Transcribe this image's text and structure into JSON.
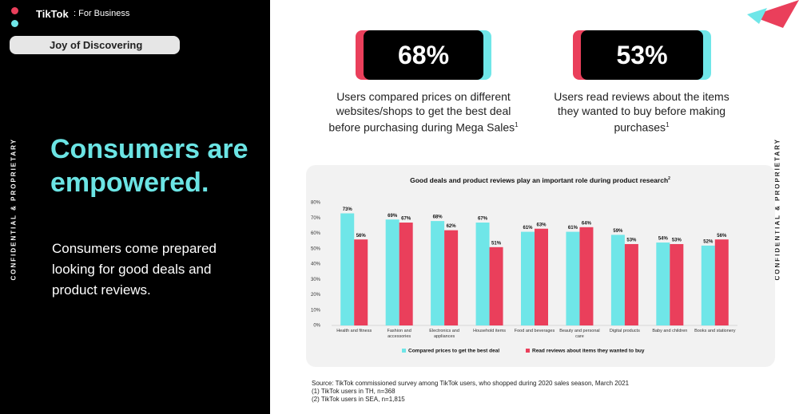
{
  "slide": {
    "brand": "TikTok",
    "brand_suffix": "For Business",
    "section": "Joy of Discovering",
    "confidential": "CONFIDENTIAL & PROPRIETARY",
    "headline": "Consumers are empowered.",
    "body": "Consumers come prepared looking for good deals and product reviews.",
    "stats": [
      {
        "value": "68%",
        "caption": "Users compared prices on different websites/shops to get the best deal before purchasing during Mega Sales",
        "note": "1"
      },
      {
        "value": "53%",
        "caption": "Users read reviews about the items they wanted to buy before making purchases",
        "note": "1"
      }
    ],
    "source": [
      "Source: TikTok commissioned survey among TikTok users, who shopped during 2020 sales season, March 2021",
      "(1) TikTok users in TH, n=368",
      "(2) TikTok users in SEA, n=1,815"
    ]
  },
  "chart_data": {
    "type": "bar",
    "title": "Good deals and product reviews play an important role during product research",
    "title_note": "2",
    "categories": [
      "Health and fitness",
      "Fashion and accessories",
      "Electronics and appliances",
      "Household items",
      "Food and beverages",
      "Beauty and personal care",
      "Digital products",
      "Baby and children",
      "Books and stationery"
    ],
    "series": [
      {
        "name": "Compared prices to get the best deal",
        "color": "#6fe6e8",
        "values": [
          73,
          69,
          68,
          67,
          61,
          61,
          59,
          54,
          52
        ],
        "value_labels": [
          "73%",
          "69%",
          "68%",
          "67%",
          "61%",
          "61%",
          "59%",
          "54%",
          "52%"
        ]
      },
      {
        "name": "Read reviews about items they wanted to buy",
        "color": "#ea3f5b",
        "values": [
          56,
          67,
          62,
          51,
          63,
          64,
          53,
          53,
          56
        ],
        "value_labels": [
          "56%",
          "67%",
          "62%",
          "51%",
          "63%",
          "64%",
          "53%",
          "53%",
          "56%"
        ]
      }
    ],
    "ylim": [
      0,
      80
    ],
    "yticks": [
      {
        "value": 0,
        "label": "0%"
      },
      {
        "value": 10,
        "label": "10%"
      },
      {
        "value": 20,
        "label": "20%"
      },
      {
        "value": 30,
        "label": "30%"
      },
      {
        "value": 40,
        "label": "40%"
      },
      {
        "value": 50,
        "label": "50%"
      },
      {
        "value": 60,
        "label": "60%"
      },
      {
        "value": 70,
        "label": "70%"
      },
      {
        "value": 80,
        "label": "80%"
      }
    ],
    "grid": false,
    "legend": "bottom"
  }
}
